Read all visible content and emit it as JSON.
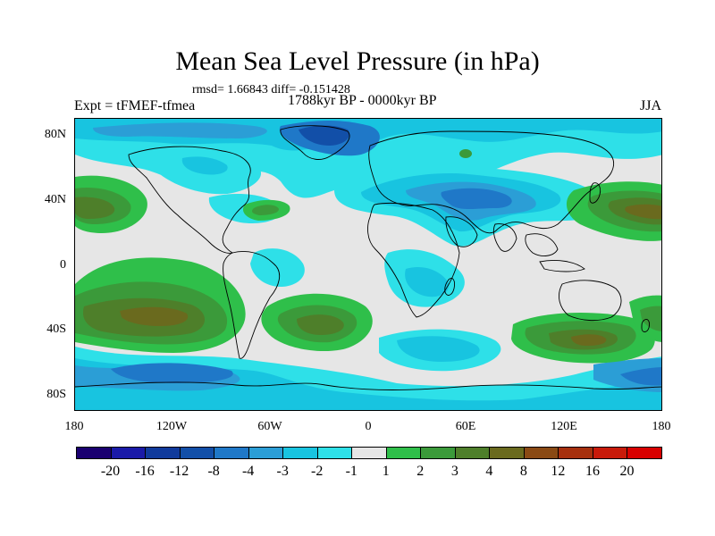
{
  "title": "Mean Sea Level Pressure (in hPa)",
  "stats": "rmsd= 1.66843 diff= -0.151428",
  "expt": "Expt = tFMEF-tfmea",
  "period": "1788kyr BP - 0000kyr BP",
  "season": "JJA",
  "lat_labels": [
    "80N",
    "40N",
    "0",
    "40S",
    "80S"
  ],
  "lon_labels": [
    "180",
    "120W",
    "60W",
    "0",
    "60E",
    "120E",
    "180"
  ],
  "colorbar": {
    "labels": [
      "-20",
      "-16",
      "-12",
      "-8",
      "-4",
      "-3",
      "-2",
      "-1",
      "1",
      "2",
      "3",
      "4",
      "8",
      "12",
      "16",
      "20"
    ],
    "colors": [
      "#1a0070",
      "#1a1aa8",
      "#103a9c",
      "#124fa8",
      "#1f78c8",
      "#2b9ed6",
      "#18c4e0",
      "#2ee0e8",
      "#e6e6e6",
      "#2fbf4a",
      "#3b9a3a",
      "#4e7f2a",
      "#6a6a1e",
      "#8a4a14",
      "#a6300e",
      "#c81a0a",
      "#d80000"
    ]
  },
  "colors": {
    "land_outline": "#000000",
    "neutral": "#e6e6e6"
  }
}
